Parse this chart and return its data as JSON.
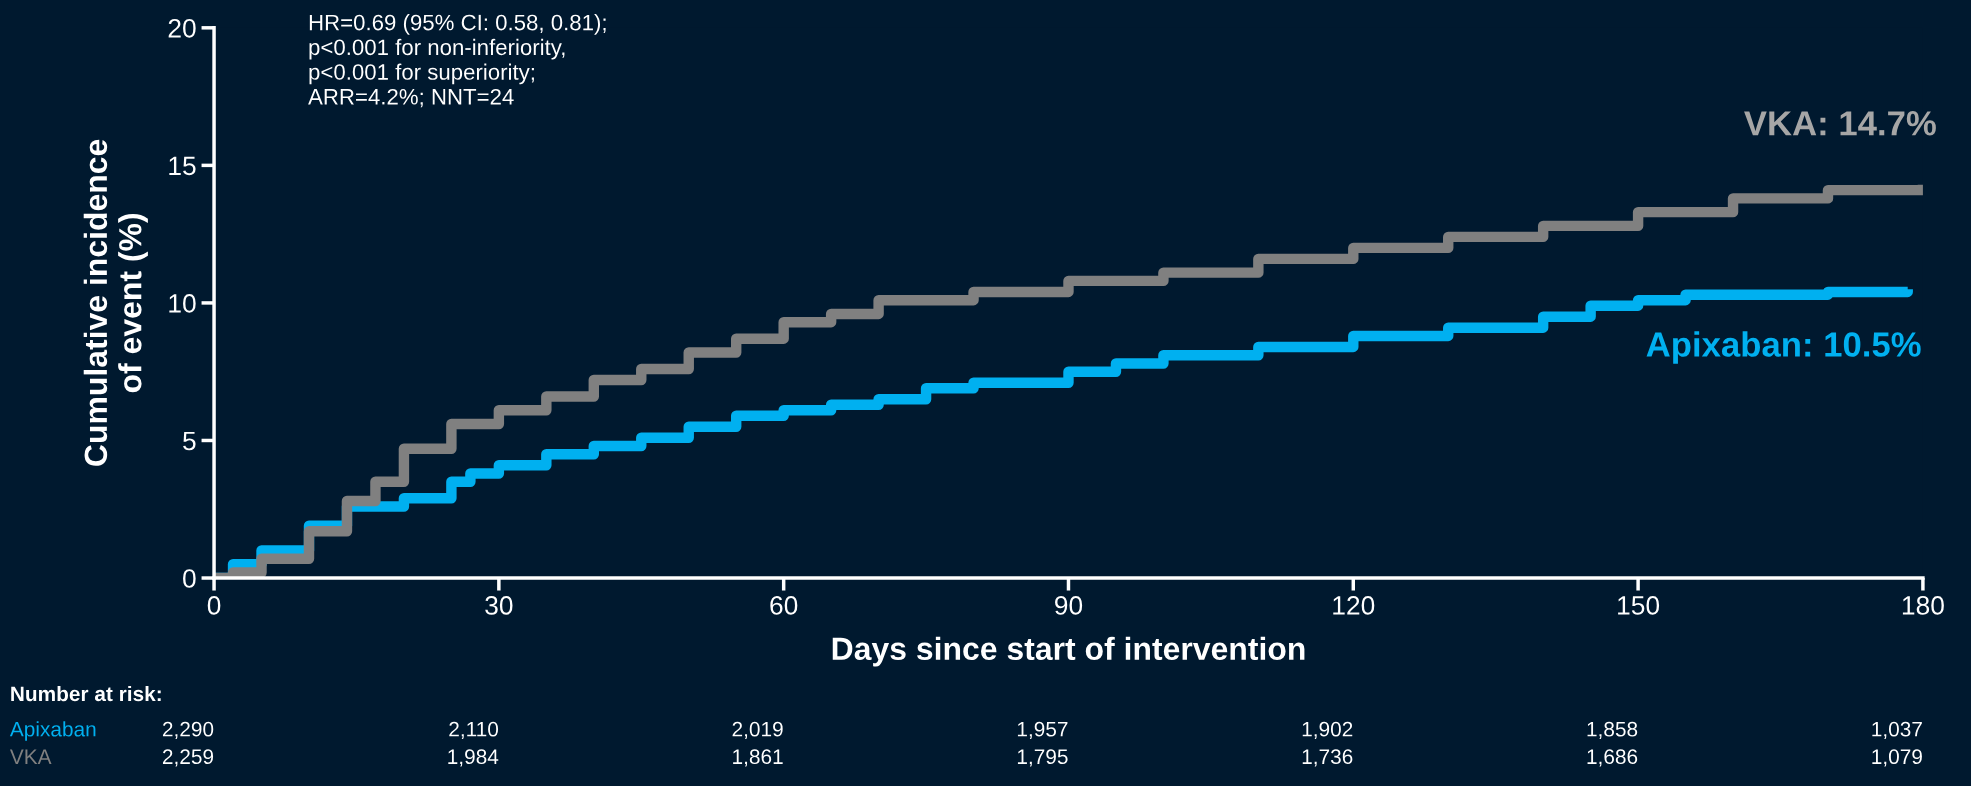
{
  "chart_data": {
    "type": "step",
    "xlabel": "Days since start of intervention",
    "ylabel": "Cumulative incidence\nof event (%)",
    "xlim": [
      0,
      180
    ],
    "xticks": [
      0,
      30,
      60,
      90,
      120,
      150,
      180
    ],
    "ylim": [
      0,
      20
    ],
    "yticks": [
      0,
      5,
      10,
      15,
      20
    ],
    "grid": false,
    "legend": false,
    "series": [
      {
        "name": "Apixaban",
        "color": "#00b0f0",
        "x": [
          0,
          2,
          5,
          10,
          14,
          20,
          25,
          27,
          30,
          35,
          40,
          45,
          50,
          55,
          60,
          65,
          70,
          75,
          80,
          90,
          95,
          100,
          110,
          120,
          130,
          140,
          145,
          150,
          155,
          170,
          178.4
        ],
        "values": [
          0,
          0.5,
          1.0,
          1.9,
          2.6,
          2.9,
          3.5,
          3.8,
          4.1,
          4.5,
          4.8,
          5.1,
          5.5,
          5.9,
          6.1,
          6.3,
          6.5,
          6.9,
          7.1,
          7.5,
          7.8,
          8.1,
          8.4,
          8.8,
          9.1,
          9.5,
          9.9,
          10.1,
          10.3,
          10.4,
          10.5
        ]
      },
      {
        "name": "VKA",
        "color": "#808080",
        "x": [
          0,
          2,
          5,
          10,
          14,
          17,
          20,
          25,
          30,
          35,
          40,
          45,
          50,
          55,
          60,
          65,
          70,
          80,
          90,
          100,
          110,
          120,
          130,
          140,
          150,
          160,
          170,
          180
        ],
        "values": [
          0,
          0.2,
          0.7,
          1.7,
          2.8,
          3.5,
          4.7,
          5.6,
          6.1,
          6.6,
          7.2,
          7.6,
          8.2,
          8.7,
          9.3,
          9.6,
          10.1,
          10.4,
          10.8,
          11.1,
          11.6,
          12.0,
          12.4,
          12.8,
          13.3,
          13.8,
          14.1,
          14.3
        ]
      }
    ],
    "annotations": [
      "HR=0.69 (95% CI: 0.58, 0.81);\np<0.001 for non-inferiority,\np<0.001 for superiority;\nARR=4.2%; NNT=24",
      {
        "text": "Apixaban: 10.5%",
        "x": 178.4,
        "y": 10.5
      },
      {
        "text": "VKA: 14.7%",
        "x": 180,
        "y": 14.3
      },
      "Number at risk:",
      "2,290",
      "2,110",
      "2,019",
      "1,957",
      "1,902",
      "1,858",
      "1,037",
      "2,259",
      "1,984",
      "1,861",
      "1,795",
      "1,736",
      "1,686",
      "1,079"
    ]
  }
}
